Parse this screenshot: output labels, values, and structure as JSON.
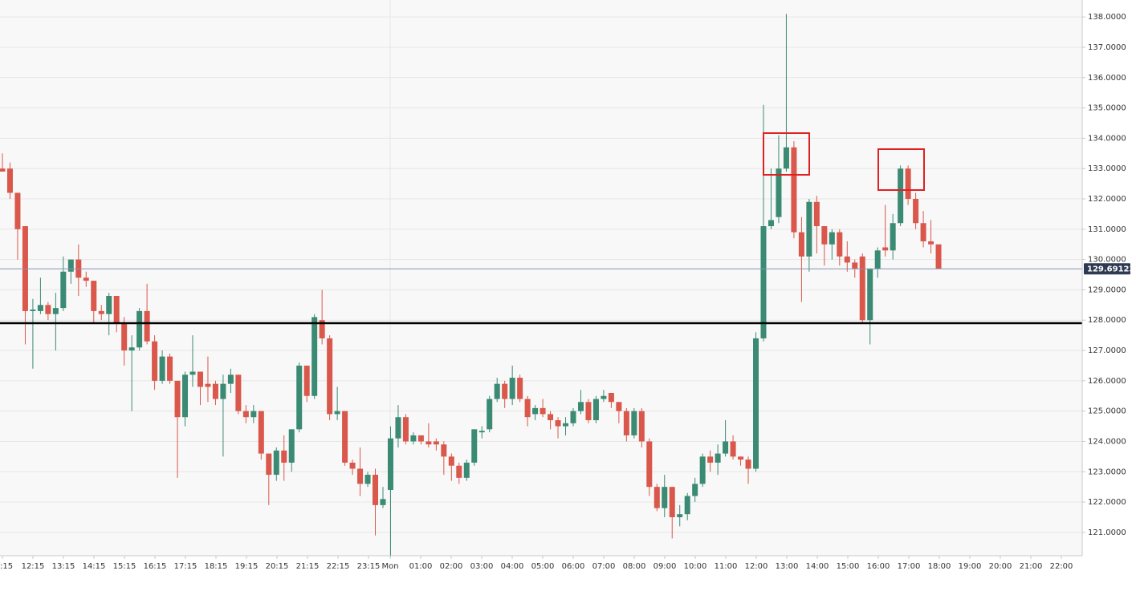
{
  "chart_data": {
    "type": "candlestick",
    "up_color": "#3a8a74",
    "down_color": "#d9574b",
    "ylim": [
      120.23,
      138.56
    ],
    "yticks": [
      {
        "value": 121,
        "label": "121.0000"
      },
      {
        "value": 122,
        "label": "122.0000"
      },
      {
        "value": 123,
        "label": "123.0000"
      },
      {
        "value": 124,
        "label": "124.0000"
      },
      {
        "value": 125,
        "label": "125.0000"
      },
      {
        "value": 126,
        "label": "126.0000"
      },
      {
        "value": 127,
        "label": "127.0000"
      },
      {
        "value": 128,
        "label": "128.0000"
      },
      {
        "value": 129,
        "label": "129.0000"
      },
      {
        "value": 130,
        "label": "130.0000"
      },
      {
        "value": 131,
        "label": "131.0000"
      },
      {
        "value": 132,
        "label": "132.0000"
      },
      {
        "value": 133,
        "label": "133.0000"
      },
      {
        "value": 134,
        "label": "134.0000"
      },
      {
        "value": 135,
        "label": "135.0000"
      },
      {
        "value": 136,
        "label": "136.0000"
      },
      {
        "value": 137,
        "label": "137.0000"
      },
      {
        "value": 138,
        "label": "138.0000"
      }
    ],
    "grid": true,
    "x_labels": [
      ":15",
      "12:15",
      "13:15",
      "14:15",
      "15:15",
      "16:15",
      "17:15",
      "18:15",
      "19:15",
      "20:15",
      "21:15",
      "22:15",
      "23:15",
      "Mon",
      "01:00",
      "02:00",
      "03:00",
      "04:00",
      "05:00",
      "06:00",
      "07:00",
      "08:00",
      "09:00",
      "10:00",
      "11:00",
      "12:00",
      "13:00",
      "14:00",
      "15:00",
      "16:00",
      "17:00",
      "18:00",
      "19:00",
      "20:00",
      "21:00",
      "22:00"
    ],
    "last_price": 129.69123,
    "support_level": 127.9,
    "open": [
      133.0,
      133.0,
      132.2,
      131.1,
      128.3,
      128.3,
      128.5,
      128.2,
      128.4,
      129.6,
      130.0,
      129.4,
      129.3,
      128.3,
      128.2,
      128.8,
      127.9,
      127.0,
      127.1,
      128.3,
      127.3,
      126.0,
      126.8,
      126.0,
      124.8,
      126.2,
      126.3,
      125.9,
      125.9,
      125.4,
      125.9,
      126.2,
      125.0,
      124.8,
      125.0,
      123.6,
      122.9,
      123.7,
      123.3,
      124.4,
      126.5,
      125.5,
      128.0,
      127.4,
      124.9,
      125.0,
      123.3,
      123.1,
      122.6,
      122.9,
      121.9,
      122.4,
      124.1,
      124.8,
      124.0,
      124.2,
      124.0,
      124.0,
      123.9,
      123.5,
      123.2,
      122.8,
      123.3,
      124.3,
      124.4,
      125.4,
      125.9,
      125.4,
      126.1,
      125.4,
      124.9,
      125.1,
      124.9,
      124.7,
      124.5,
      124.6,
      125.0,
      125.3,
      124.7,
      125.4,
      125.6,
      125.3,
      125.0,
      124.2,
      125.0,
      124.0,
      122.5,
      121.8,
      122.5,
      121.5,
      121.6,
      122.2,
      122.6,
      123.5,
      123.3,
      123.6,
      124.0,
      123.5,
      123.4,
      123.1,
      127.4,
      131.1,
      131.4,
      133.0,
      133.7,
      130.9,
      130.1,
      131.9,
      131.1,
      130.5,
      130.9,
      130.1,
      129.9,
      130.1,
      128.0,
      129.7,
      130.4,
      130.3,
      131.2,
      133.0,
      132.0,
      131.2,
      130.6,
      130.5
    ],
    "high": [
      133.5,
      133.2,
      132.2,
      131.1,
      128.7,
      129.4,
      128.6,
      128.9,
      130.1,
      130.0,
      130.5,
      129.6,
      129.3,
      128.5,
      128.9,
      128.8,
      128.1,
      127.5,
      128.4,
      129.2,
      127.5,
      127.0,
      126.9,
      126.0,
      126.3,
      127.5,
      126.3,
      126.8,
      126.0,
      126.2,
      126.4,
      126.2,
      125.2,
      125.2,
      125.0,
      123.6,
      123.8,
      124.2,
      124.4,
      126.6,
      126.5,
      128.2,
      129.0,
      127.5,
      125.8,
      125.0,
      123.4,
      123.8,
      123.0,
      123.1,
      122.5,
      124.5,
      125.2,
      124.9,
      124.3,
      124.2,
      124.6,
      124.1,
      124.0,
      123.6,
      123.3,
      123.4,
      124.4,
      124.5,
      125.5,
      126.1,
      126.0,
      126.5,
      126.2,
      125.5,
      125.2,
      125.4,
      125.0,
      124.8,
      124.8,
      125.1,
      125.7,
      125.4,
      125.5,
      125.7,
      125.6,
      125.3,
      125.1,
      125.1,
      125.1,
      124.1,
      122.6,
      122.9,
      122.5,
      121.9,
      122.3,
      122.8,
      123.6,
      123.7,
      123.9,
      124.7,
      124.2,
      123.5,
      123.5,
      127.6,
      135.1,
      133.0,
      134.1,
      138.1,
      133.9,
      131.4,
      132.0,
      132.1,
      131.1,
      131.0,
      131.0,
      130.6,
      130.0,
      130.2,
      129.7,
      130.4,
      131.8,
      131.5,
      133.1,
      133.1,
      132.2,
      131.6,
      131.3,
      130.5
    ],
    "low": [
      132.9,
      132.0,
      130.0,
      127.2,
      126.4,
      128.2,
      128.0,
      127.0,
      128.3,
      129.2,
      128.8,
      129.1,
      127.9,
      128.0,
      127.5,
      127.6,
      126.5,
      125.0,
      127.0,
      127.2,
      125.7,
      125.9,
      125.9,
      122.8,
      124.5,
      125.8,
      125.2,
      125.3,
      125.2,
      123.5,
      125.6,
      124.9,
      124.6,
      124.6,
      123.4,
      121.9,
      122.7,
      122.7,
      123.0,
      124.3,
      125.3,
      125.4,
      127.2,
      124.7,
      124.7,
      123.2,
      122.9,
      122.2,
      122.5,
      120.9,
      121.8,
      120.2,
      123.8,
      123.9,
      123.9,
      123.9,
      123.8,
      123.7,
      122.9,
      122.7,
      122.6,
      122.7,
      123.2,
      124.1,
      124.3,
      125.3,
      125.1,
      125.2,
      125.3,
      124.5,
      124.7,
      124.8,
      124.4,
      124.1,
      124.2,
      124.5,
      124.9,
      124.6,
      124.6,
      125.3,
      125.1,
      124.6,
      124.0,
      124.1,
      123.8,
      122.2,
      121.7,
      121.5,
      120.8,
      121.2,
      121.4,
      122.0,
      122.5,
      123.0,
      122.9,
      123.5,
      123.4,
      123.2,
      122.6,
      123.0,
      127.3,
      131.0,
      131.2,
      132.9,
      130.7,
      128.6,
      129.6,
      130.2,
      129.8,
      130.0,
      129.8,
      129.6,
      129.4,
      127.9,
      127.2,
      129.4,
      130.1,
      130.0,
      131.1,
      131.8,
      131.0,
      130.4,
      130.2,
      129.7
    ],
    "close": [
      132.9,
      132.2,
      131.0,
      128.3,
      128.35,
      128.5,
      128.2,
      128.4,
      129.6,
      130.0,
      129.4,
      129.3,
      128.3,
      128.2,
      128.8,
      127.9,
      127.0,
      127.1,
      128.3,
      127.3,
      126.0,
      126.8,
      126.0,
      124.8,
      126.2,
      126.3,
      125.8,
      125.8,
      125.4,
      125.9,
      126.2,
      125.0,
      124.8,
      125.0,
      123.6,
      122.9,
      123.7,
      123.3,
      124.4,
      126.5,
      125.5,
      128.1,
      127.4,
      124.9,
      125.0,
      123.3,
      123.1,
      122.6,
      122.9,
      121.9,
      122.1,
      124.1,
      124.8,
      124.0,
      124.2,
      124.0,
      123.9,
      123.9,
      123.5,
      123.2,
      122.8,
      123.3,
      124.4,
      124.35,
      125.4,
      125.9,
      125.4,
      126.1,
      125.4,
      124.8,
      125.1,
      124.9,
      124.7,
      124.5,
      124.6,
      125.0,
      125.3,
      124.7,
      125.4,
      125.5,
      125.3,
      125.0,
      124.2,
      125.0,
      124.0,
      122.5,
      121.8,
      122.5,
      121.5,
      121.6,
      122.2,
      122.6,
      123.5,
      123.3,
      123.6,
      124.0,
      123.5,
      123.4,
      123.1,
      127.4,
      131.1,
      131.3,
      133.0,
      133.7,
      130.9,
      130.1,
      131.9,
      131.1,
      130.5,
      130.9,
      130.1,
      129.9,
      129.7,
      128.0,
      129.7,
      130.3,
      130.3,
      131.2,
      133.0,
      132.0,
      131.2,
      130.6,
      130.5,
      129.7
    ]
  }
}
